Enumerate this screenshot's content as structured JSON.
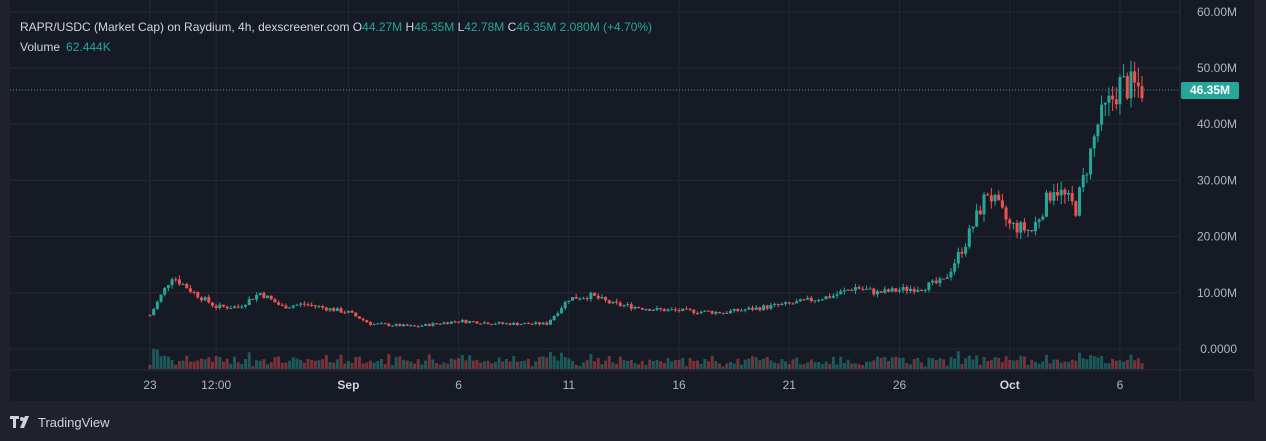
{
  "header": {
    "symbol_line": "RAPR/USDC (Market Cap) on Raydium, 4h, dexscreener.com",
    "ohlc": [
      {
        "label": "O",
        "value": "44.27M"
      },
      {
        "label": "H",
        "value": "46.35M"
      },
      {
        "label": "L",
        "value": "42.78M"
      },
      {
        "label": "C",
        "value": "46.35M"
      }
    ],
    "change": "2.080M (+4.70%)",
    "volume_label": "Volume",
    "volume_value": "62.444K"
  },
  "last_price": "46.35M",
  "footer": {
    "brand": "TradingView"
  },
  "colors": {
    "up": "#26a69a",
    "down": "#ef5350",
    "background": "#161a25",
    "grid": "#242833",
    "text": "#b2b5be"
  },
  "chart_data": {
    "type": "candlestick",
    "y_axis_ticks": [
      "0.0000",
      "10.00M",
      "20.00M",
      "30.00M",
      "40.00M",
      "50.00M",
      "60.00M"
    ],
    "x_axis_ticks": [
      "23",
      "12:00",
      "Sep",
      "6",
      "11",
      "16",
      "21",
      "26",
      "Oct",
      "6"
    ],
    "ylim": [
      0,
      60
    ],
    "y_unit": "M",
    "x_dates": [
      "2024-08-23",
      "2024-08-26",
      "2024-09-01",
      "2024-09-06",
      "2024-09-11",
      "2024-09-16",
      "2024-09-21",
      "2024-09-26",
      "2024-10-01",
      "2024-10-06"
    ],
    "close_series": [
      {
        "date": "2024-08-23",
        "value": 6
      },
      {
        "date": "2024-08-24",
        "value": 13
      },
      {
        "date": "2024-08-25",
        "value": 10
      },
      {
        "date": "2024-08-26",
        "value": 7.5
      },
      {
        "date": "2024-08-27",
        "value": 7.5
      },
      {
        "date": "2024-08-28",
        "value": 10
      },
      {
        "date": "2024-08-29",
        "value": 7.5
      },
      {
        "date": "2024-08-30",
        "value": 8
      },
      {
        "date": "2024-09-01",
        "value": 6.5
      },
      {
        "date": "2024-09-02",
        "value": 4.5
      },
      {
        "date": "2024-09-04",
        "value": 4
      },
      {
        "date": "2024-09-06",
        "value": 5
      },
      {
        "date": "2024-09-08",
        "value": 4.5
      },
      {
        "date": "2024-09-10",
        "value": 4.5
      },
      {
        "date": "2024-09-11",
        "value": 9
      },
      {
        "date": "2024-09-12",
        "value": 9.5
      },
      {
        "date": "2024-09-13",
        "value": 8
      },
      {
        "date": "2024-09-15",
        "value": 7
      },
      {
        "date": "2024-09-18",
        "value": 6.5
      },
      {
        "date": "2024-09-21",
        "value": 8
      },
      {
        "date": "2024-09-23",
        "value": 9.5
      },
      {
        "date": "2024-09-24",
        "value": 11
      },
      {
        "date": "2024-09-25",
        "value": 10
      },
      {
        "date": "2024-09-27",
        "value": 11
      },
      {
        "date": "2024-09-28",
        "value": 12
      },
      {
        "date": "2024-09-29",
        "value": 19
      },
      {
        "date": "2024-09-30",
        "value": 28
      },
      {
        "date": "2024-10-01",
        "value": 22
      },
      {
        "date": "2024-10-02",
        "value": 21
      },
      {
        "date": "2024-10-03",
        "value": 29
      },
      {
        "date": "2024-10-04",
        "value": 25
      },
      {
        "date": "2024-10-05",
        "value": 40
      },
      {
        "date": "2024-10-06",
        "value": 47
      },
      {
        "date": "2024-10-07",
        "value": 46.35
      }
    ],
    "volume_note": "volume histogram at bottom, small bars with spikes near Aug 23, Aug 29 and Oct 5"
  }
}
